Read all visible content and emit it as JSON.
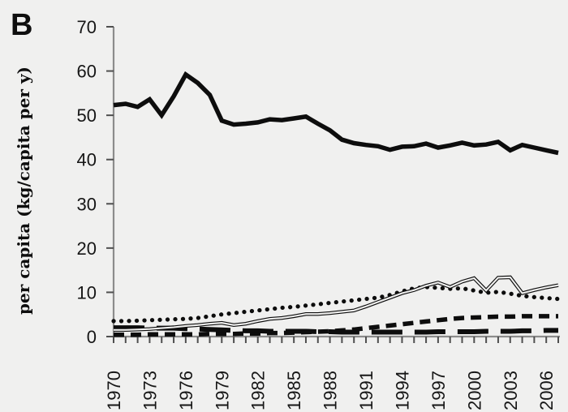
{
  "panel_label": "B",
  "y_axis_title": "per capita (kg/capita per y)",
  "colors": {
    "background": "#f0f0ef",
    "line": "#0d0d0d",
    "axis": "#8c8c8c",
    "tick": "#4f4f4f",
    "tick_text": "#161616"
  },
  "chart_data": {
    "type": "line",
    "title": "",
    "xlabel": "",
    "ylabel": "per capita (kg/capita per y)",
    "ylim": [
      0,
      70
    ],
    "y_ticks": [
      0,
      10,
      20,
      30,
      40,
      50,
      60,
      70
    ],
    "x_tick_labels": [
      "1970",
      "1973",
      "1976",
      "1979",
      "1982",
      "1985",
      "1988",
      "1991",
      "1994",
      "1997",
      "2000",
      "2003",
      "2006"
    ],
    "grid": false,
    "legend": "none",
    "years": [
      1970,
      1971,
      1972,
      1973,
      1974,
      1975,
      1976,
      1977,
      1978,
      1979,
      1980,
      1981,
      1982,
      1983,
      1984,
      1985,
      1986,
      1987,
      1988,
      1989,
      1990,
      1991,
      1992,
      1993,
      1994,
      1995,
      1996,
      1997,
      1998,
      1999,
      2000,
      2001,
      2002,
      2003,
      2004,
      2005,
      2006,
      2007
    ],
    "series": [
      {
        "id": "thick-solid-line",
        "style": "solid",
        "values": [
          52.3,
          52.6,
          51.9,
          53.6,
          50.0,
          54.3,
          59.2,
          57.3,
          54.6,
          48.8,
          47.9,
          48.1,
          48.4,
          49.1,
          48.9,
          49.3,
          49.7,
          48.1,
          46.6,
          44.5,
          43.7,
          43.3,
          43.0,
          42.2,
          42.9,
          43.0,
          43.6,
          42.7,
          43.2,
          43.8,
          43.2,
          43.4,
          44.0,
          42.1,
          43.3,
          42.7,
          42.1,
          41.5
        ]
      },
      {
        "id": "dotted-line",
        "style": "dotted",
        "values": [
          3.5,
          3.5,
          3.6,
          3.7,
          3.8,
          3.9,
          4.0,
          4.2,
          4.6,
          5.0,
          5.3,
          5.6,
          5.9,
          6.2,
          6.5,
          6.7,
          7.0,
          7.3,
          7.6,
          7.9,
          8.2,
          8.5,
          8.8,
          9.4,
          10.2,
          10.9,
          11.2,
          11.0,
          10.8,
          10.9,
          10.4,
          9.9,
          10.1,
          9.7,
          9.2,
          8.9,
          8.7,
          8.5
        ]
      },
      {
        "id": "double-thin-line",
        "style": "double",
        "values": [
          1.5,
          1.5,
          1.6,
          1.7,
          1.9,
          2.1,
          2.4,
          2.6,
          2.9,
          3.1,
          2.6,
          2.9,
          3.5,
          4.0,
          4.2,
          4.6,
          5.1,
          5.1,
          5.3,
          5.6,
          5.9,
          6.8,
          7.8,
          8.8,
          9.8,
          10.5,
          11.5,
          12.2,
          11.2,
          12.4,
          13.2,
          10.4,
          13.3,
          13.4,
          9.8,
          10.5,
          11.1,
          11.6
        ]
      },
      {
        "id": "short-dash-line",
        "style": "dashed",
        "values": [
          0.4,
          0.4,
          0.4,
          0.5,
          0.5,
          0.5,
          0.5,
          0.5,
          0.6,
          0.6,
          0.6,
          0.7,
          0.7,
          0.8,
          0.8,
          0.9,
          1.0,
          1.1,
          1.2,
          1.4,
          1.6,
          1.9,
          2.2,
          2.5,
          2.8,
          3.1,
          3.4,
          3.7,
          4.0,
          4.2,
          4.3,
          4.4,
          4.5,
          4.5,
          4.6,
          4.6,
          4.6,
          4.6
        ]
      },
      {
        "id": "long-dash-line",
        "style": "long-dash",
        "values": [
          2.0,
          2.0,
          2.0,
          1.9,
          1.9,
          1.9,
          1.8,
          1.7,
          1.6,
          1.5,
          1.4,
          1.3,
          1.3,
          1.2,
          1.2,
          1.2,
          1.2,
          1.1,
          1.1,
          1.0,
          1.0,
          1.0,
          1.0,
          1.0,
          1.0,
          1.0,
          1.0,
          1.1,
          1.1,
          1.1,
          1.1,
          1.2,
          1.2,
          1.2,
          1.3,
          1.3,
          1.4,
          1.4
        ]
      }
    ]
  }
}
